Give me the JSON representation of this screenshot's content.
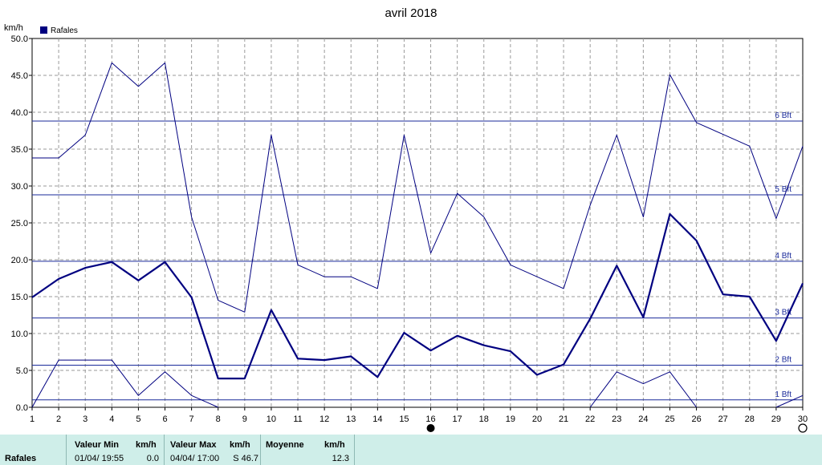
{
  "chart_data": {
    "type": "line",
    "title": "avril 2018",
    "y_unit_label": "km/h",
    "legend": {
      "label": "Rafales",
      "color": "#000080",
      "placement": "top-left"
    },
    "x": [
      1,
      2,
      3,
      4,
      5,
      6,
      7,
      8,
      9,
      10,
      11,
      12,
      13,
      14,
      15,
      16,
      17,
      18,
      19,
      20,
      21,
      22,
      23,
      24,
      25,
      26,
      27,
      28,
      29,
      30
    ],
    "xlim": [
      1,
      30
    ],
    "ylim": [
      0,
      50
    ],
    "y_ticks": [
      "0.0",
      "5.0",
      "10.0",
      "15.0",
      "20.0",
      "25.0",
      "30.0",
      "35.0",
      "40.0",
      "45.0",
      "50.0"
    ],
    "grid": true,
    "series": [
      {
        "name": "Rafales",
        "role": "mean",
        "color": "#000080",
        "values": [
          14.9,
          17.4,
          18.9,
          19.7,
          17.2,
          19.7,
          14.9,
          3.9,
          3.9,
          13.2,
          6.6,
          6.4,
          6.9,
          4.1,
          10.1,
          7.7,
          9.7,
          8.4,
          7.6,
          4.4,
          5.8,
          12.0,
          19.2,
          12.2,
          26.2,
          22.6,
          15.3,
          15.0,
          9.0,
          16.8
        ]
      },
      {
        "role": "max",
        "color": "#000080",
        "values": [
          33.8,
          33.8,
          36.9,
          46.7,
          43.5,
          46.7,
          25.8,
          14.5,
          12.9,
          36.9,
          19.3,
          17.7,
          17.7,
          16.1,
          36.9,
          20.9,
          29.0,
          25.8,
          19.3,
          17.7,
          16.1,
          27.4,
          36.9,
          25.8,
          45.1,
          38.6,
          37.0,
          35.4,
          25.6,
          35.4
        ]
      },
      {
        "role": "min",
        "color": "#000080",
        "values": [
          0.0,
          6.4,
          6.4,
          6.4,
          1.6,
          4.8,
          1.6,
          0.0,
          null,
          null,
          null,
          null,
          null,
          null,
          null,
          null,
          null,
          null,
          null,
          null,
          null,
          0.0,
          4.8,
          3.2,
          4.8,
          0.0,
          null,
          null,
          0.0,
          1.6
        ]
      }
    ],
    "beaufort_lines": [
      {
        "label": "1 Bft",
        "value": 1.0
      },
      {
        "label": "2 Bft",
        "value": 5.7
      },
      {
        "label": "3 Bft",
        "value": 12.1
      },
      {
        "label": "4 Bft",
        "value": 19.8
      },
      {
        "label": "5 Bft",
        "value": 28.8
      },
      {
        "label": "6 Bft",
        "value": 38.8
      }
    ],
    "moon_markers": [
      {
        "day": 16,
        "phase": "full"
      },
      {
        "day": 30,
        "phase": "new"
      }
    ]
  },
  "footer": {
    "row_label": "Rafales",
    "min_header": "Valeur Min",
    "min_unit": "km/h",
    "min_datetime": "01/04/  19:55",
    "min_value": "0.0",
    "max_header": "Valeur Max",
    "max_unit": "km/h",
    "max_datetime": "04/04/  17:00",
    "max_value": "S 46.7",
    "avg_header": "Moyenne",
    "avg_unit": "km/h",
    "avg_value": "12.3"
  }
}
